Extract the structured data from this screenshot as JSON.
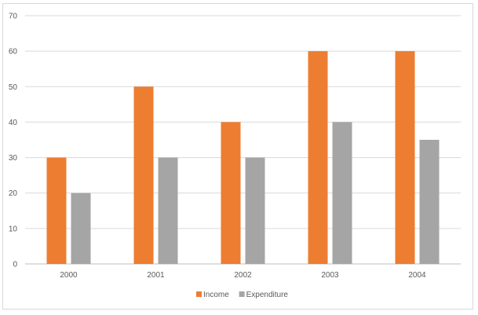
{
  "chart_data": {
    "type": "bar",
    "categories": [
      "2000",
      "2001",
      "2002",
      "2003",
      "2004"
    ],
    "series": [
      {
        "name": "Income",
        "values": [
          30,
          50,
          40,
          60,
          60
        ],
        "color": "#ed7d31"
      },
      {
        "name": "Expenditure",
        "values": [
          20,
          30,
          30,
          40,
          35
        ],
        "color": "#a5a5a5"
      }
    ],
    "ylim": [
      0,
      70
    ],
    "yticks": [
      0,
      10,
      20,
      30,
      40,
      50,
      60,
      70
    ],
    "grid": true,
    "legend_position": "bottom",
    "title": "",
    "xlabel": "",
    "ylabel": ""
  }
}
